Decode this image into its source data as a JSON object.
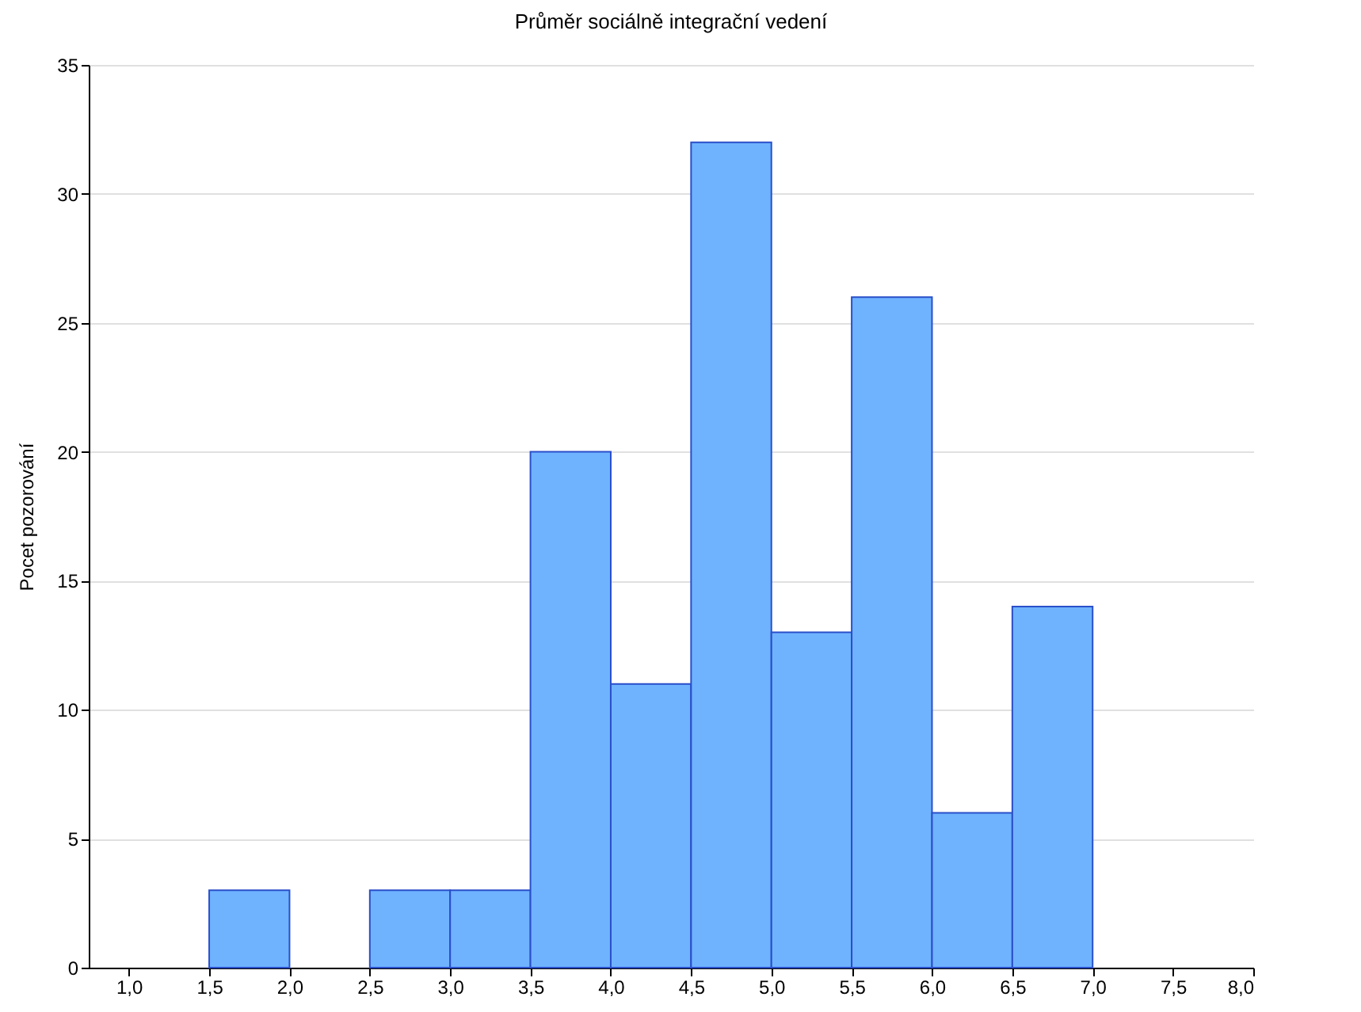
{
  "chart_data": {
    "type": "histogram",
    "title": "Průměr sociálně integrační vedení",
    "ylabel": "Pocet pozorování",
    "bins": [
      1.0,
      1.5,
      2.0,
      2.5,
      3.0,
      3.5,
      4.0,
      4.5,
      5.0,
      5.5,
      6.0,
      6.5,
      7.0
    ],
    "values": [
      0,
      3,
      0,
      3,
      3,
      20,
      11,
      32,
      13,
      26,
      6,
      14
    ],
    "color": "#6fb3ff",
    "xlim": [
      0.75,
      8.0
    ],
    "xticks": [
      {
        "value": 1,
        "label": "1,0"
      },
      {
        "value": 1.5,
        "label": "1,5"
      },
      {
        "value": 2,
        "label": "2,0"
      },
      {
        "value": 2.5,
        "label": "2,5"
      },
      {
        "value": 3,
        "label": "3,0"
      },
      {
        "value": 3.5,
        "label": "3,5"
      },
      {
        "value": 4,
        "label": "4,0"
      },
      {
        "value": 4.5,
        "label": "4,5"
      },
      {
        "value": 5,
        "label": "5,0"
      },
      {
        "value": 5.5,
        "label": "5,5"
      },
      {
        "value": 6,
        "label": "6,0"
      },
      {
        "value": 6.5,
        "label": "6,5"
      },
      {
        "value": 7,
        "label": "7,0"
      },
      {
        "value": 7.5,
        "label": "7,5"
      },
      {
        "value": 8,
        "label": "8,0"
      }
    ],
    "ylim": [
      0,
      35
    ],
    "yticks": [
      0,
      5,
      10,
      15,
      20,
      25,
      30,
      35
    ],
    "grid": "y"
  }
}
